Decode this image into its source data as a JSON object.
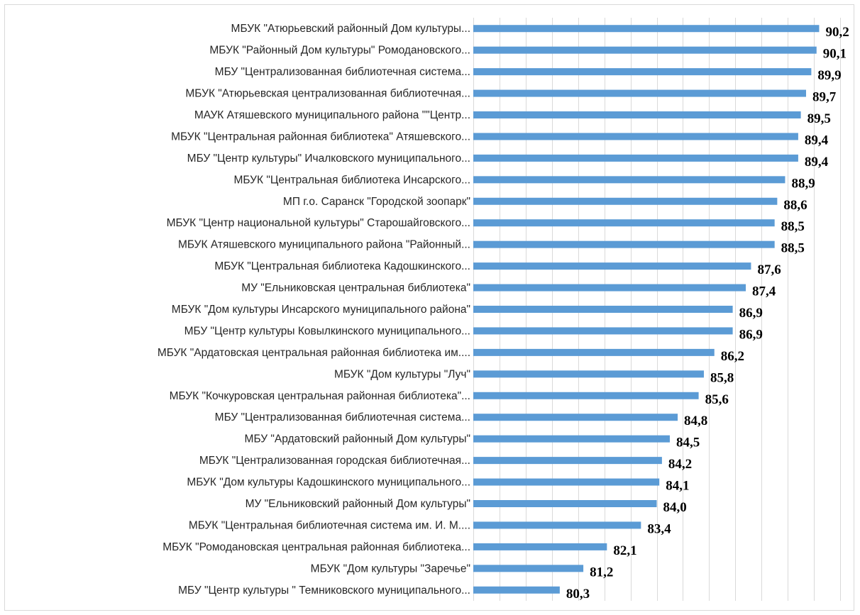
{
  "chart_data": {
    "type": "bar",
    "orientation": "horizontal",
    "categories": [
      "МБУК \"Атюрьевский районный Дом культуры...",
      "МБУК \"Районный Дом культуры\" Ромодановского...",
      "МБУ \"Централизованная библиотечная система...",
      "МБУК \"Атюрьевская централизованная библиотечная...",
      "МАУК Атяшевского муниципального района \"\"Центр...",
      "МБУК \"Центральная районная библиотека\" Атяшевского...",
      "МБУ \"Центр культуры\" Ичалковского муниципального...",
      "МБУК \"Центральная библиотека Инсарского...",
      "МП г.о. Саранск \"Городской зоопарк\"",
      "МБУК \"Центр национальной культуры\" Старошайговского...",
      "МБУК Атяшевского муниципального района \"Районный...",
      "МБУК \"Центральная библиотека Кадошкинского...",
      "МУ \"Ельниковская центральная библиотека\"",
      "МБУК \"Дом культуры Инсарского муниципального района\"",
      "МБУ \"Центр культуры Ковылкинского муниципального...",
      "МБУК \"Ардатовская центральная районная библиотека им....",
      "МБУК \"Дом культуры \"Луч\"",
      "МБУК \"Кочкуровская центральная районная библиотека\"...",
      "МБУ \"Централизованная библиотечная система...",
      "МБУ \"Ардатовский районный Дом культуры\"",
      "МБУК \"Централизованная городская библиотечная...",
      "МБУК \"Дом культуры Кадошкинского муниципального...",
      "МУ \"Ельниковский районный Дом культуры\"",
      "МБУК \"Центральная библиотечная система им. И. М....",
      "МБУК \"Ромодановская центральная районная библиотека...",
      "МБУК \"Дом культуры \"Заречье\"",
      "МБУ \"Центр культуры \" Темниковского муниципального..."
    ],
    "values": [
      90.2,
      90.1,
      89.9,
      89.7,
      89.5,
      89.4,
      89.4,
      88.9,
      88.6,
      88.5,
      88.5,
      87.6,
      87.4,
      86.9,
      86.9,
      86.2,
      85.8,
      85.6,
      84.8,
      84.5,
      84.2,
      84.1,
      84.0,
      83.4,
      82.1,
      81.2,
      80.3
    ],
    "value_labels": [
      "90,2",
      "90,1",
      "89,9",
      "89,7",
      "89,5",
      "89,4",
      "89,4",
      "88,9",
      "88,6",
      "88,5",
      "88,5",
      "87,6",
      "87,4",
      "86,9",
      "86,9",
      "86,2",
      "85,8",
      "85,6",
      "84,8",
      "84,5",
      "84,2",
      "84,1",
      "84,0",
      "83,4",
      "82,1",
      "81,2",
      "80,3"
    ],
    "xlim": [
      77,
      91
    ],
    "grid": "vertical",
    "legend": "none",
    "bar_color": "#5b9bd5",
    "title": "",
    "xlabel": "",
    "ylabel": ""
  }
}
